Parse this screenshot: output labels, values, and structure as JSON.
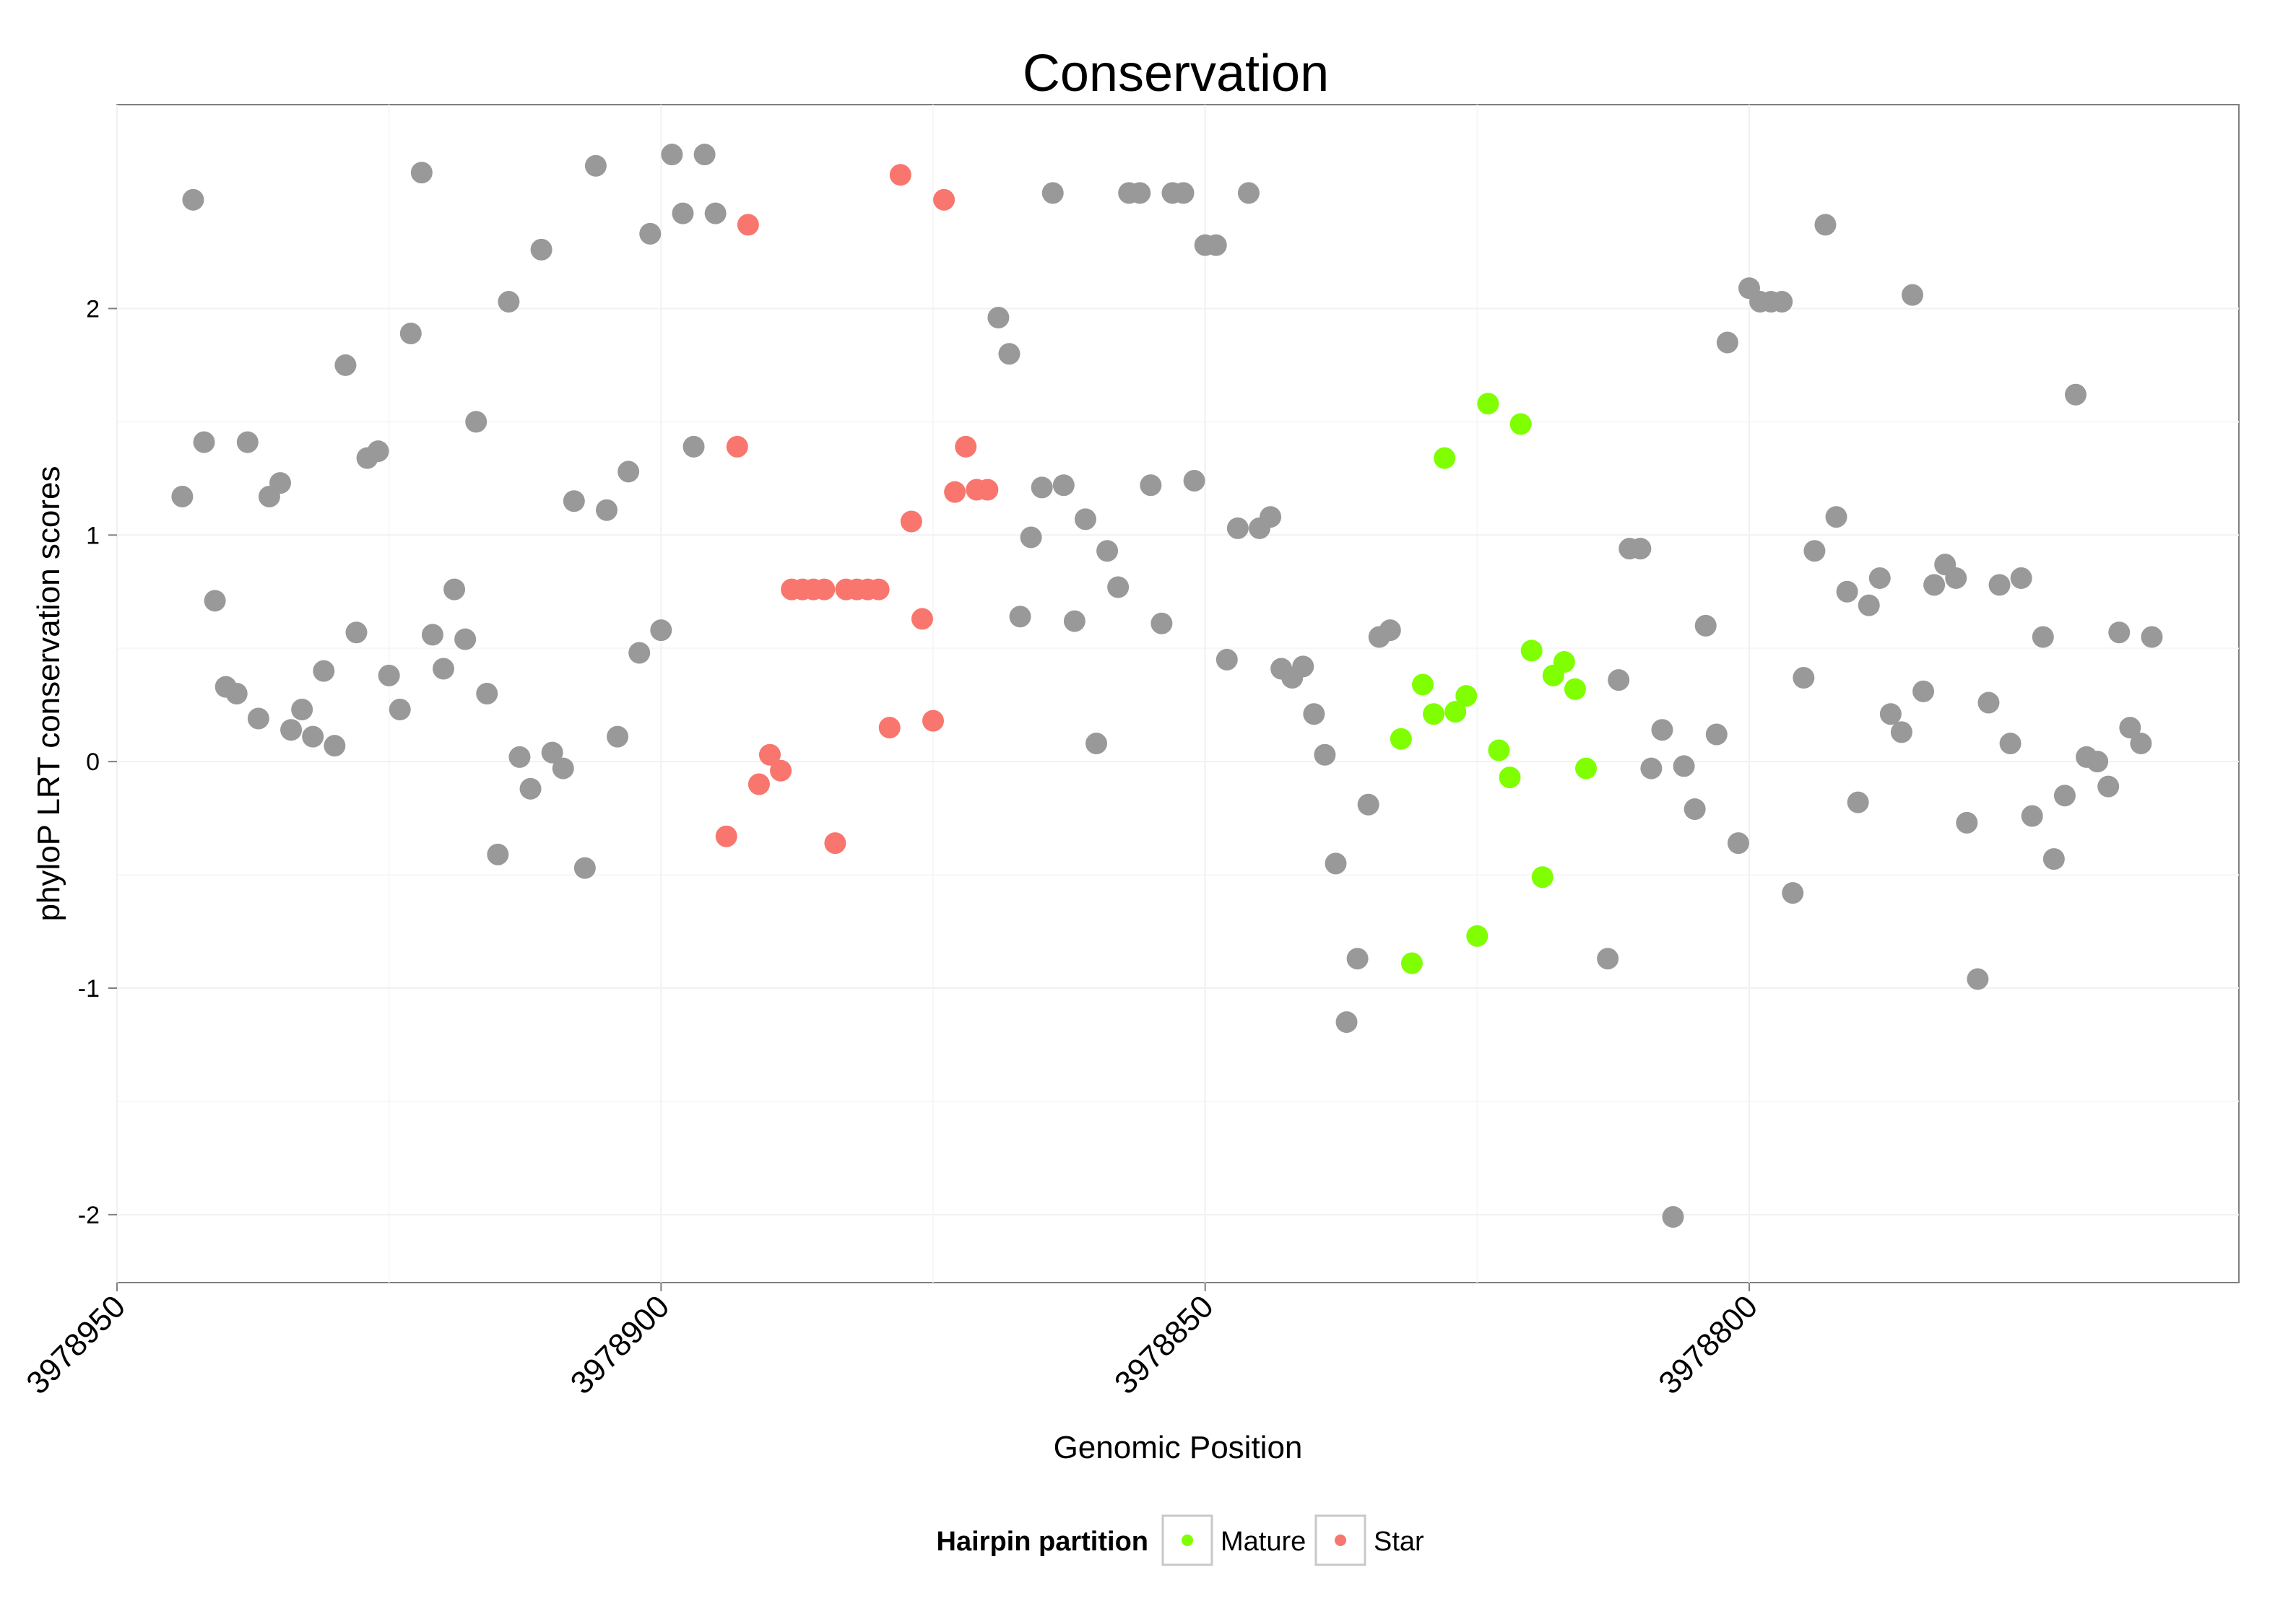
{
  "chart_data": {
    "type": "scatter",
    "title": "Conservation",
    "xlabel": "Genomic Position",
    "ylabel": "phyloP LRT conservation scores",
    "x_reversed": true,
    "xlim": [
      3978950,
      3978755
    ],
    "ylim": [
      -2.3,
      2.9
    ],
    "x_ticks": [
      3978950,
      3978900,
      3978850,
      3978800
    ],
    "x_tick_labels": [
      "3978950",
      "3978900",
      "3978850",
      "3978800"
    ],
    "y_ticks": [
      -2,
      -1,
      0,
      1,
      2
    ],
    "y_tick_labels": [
      "-2",
      "-1",
      "0",
      "1",
      "2"
    ],
    "grid": true,
    "legend": {
      "title": "Hairpin partition",
      "position": "bottom",
      "entries": [
        {
          "label": "Mature",
          "color": "#7FFF00"
        },
        {
          "label": "Star",
          "color": "#F8766D"
        }
      ]
    },
    "series": [
      {
        "name": "Other",
        "color": "#999999",
        "in_legend": false,
        "points": [
          [
            3978944,
            1.17
          ],
          [
            3978943,
            2.48
          ],
          [
            3978942,
            1.41
          ],
          [
            3978941,
            0.71
          ],
          [
            3978940,
            0.33
          ],
          [
            3978939,
            0.3
          ],
          [
            3978938,
            1.41
          ],
          [
            3978937,
            0.19
          ],
          [
            3978936,
            1.17
          ],
          [
            3978935,
            1.23
          ],
          [
            3978934,
            0.14
          ],
          [
            3978933,
            0.23
          ],
          [
            3978932,
            0.11
          ],
          [
            3978931,
            0.4
          ],
          [
            3978930,
            0.07
          ],
          [
            3978929,
            1.75
          ],
          [
            3978928,
            0.57
          ],
          [
            3978927,
            1.34
          ],
          [
            3978926,
            1.37
          ],
          [
            3978925,
            0.38
          ],
          [
            3978924,
            0.23
          ],
          [
            3978923,
            1.89
          ],
          [
            3978922,
            2.6
          ],
          [
            3978921,
            0.56
          ],
          [
            3978920,
            0.41
          ],
          [
            3978919,
            0.76
          ],
          [
            3978918,
            0.54
          ],
          [
            3978917,
            1.5
          ],
          [
            3978916,
            0.3
          ],
          [
            3978915,
            -0.41
          ],
          [
            3978914,
            2.03
          ],
          [
            3978913,
            0.02
          ],
          [
            3978912,
            -0.12
          ],
          [
            3978911,
            2.26
          ],
          [
            3978910,
            0.04
          ],
          [
            3978909,
            -0.03
          ],
          [
            3978908,
            1.15
          ],
          [
            3978907,
            -0.47
          ],
          [
            3978906,
            2.63
          ],
          [
            3978905,
            1.11
          ],
          [
            3978904,
            0.11
          ],
          [
            3978903,
            1.28
          ],
          [
            3978902,
            0.48
          ],
          [
            3978901,
            2.33
          ],
          [
            3978900,
            0.58
          ],
          [
            3978899,
            2.68
          ],
          [
            3978898,
            2.42
          ],
          [
            3978897,
            1.39
          ],
          [
            3978896,
            2.68
          ],
          [
            3978895,
            2.42
          ],
          [
            3978869,
            1.96
          ],
          [
            3978868,
            1.8
          ],
          [
            3978867,
            0.64
          ],
          [
            3978866,
            0.99
          ],
          [
            3978865,
            1.21
          ],
          [
            3978864,
            2.51
          ],
          [
            3978863,
            1.22
          ],
          [
            3978862,
            0.62
          ],
          [
            3978861,
            1.07
          ],
          [
            3978860,
            0.08
          ],
          [
            3978859,
            0.93
          ],
          [
            3978858,
            0.77
          ],
          [
            3978857,
            2.51
          ],
          [
            3978856,
            2.51
          ],
          [
            3978855,
            1.22
          ],
          [
            3978854,
            0.61
          ],
          [
            3978853,
            2.51
          ],
          [
            3978852,
            2.51
          ],
          [
            3978851,
            1.24
          ],
          [
            3978850,
            2.28
          ],
          [
            3978849,
            2.28
          ],
          [
            3978848,
            0.45
          ],
          [
            3978847,
            1.03
          ],
          [
            3978846,
            2.51
          ],
          [
            3978845,
            1.03
          ],
          [
            3978844,
            1.08
          ],
          [
            3978843,
            0.41
          ],
          [
            3978842,
            0.37
          ],
          [
            3978841,
            0.42
          ],
          [
            3978840,
            0.21
          ],
          [
            3978839,
            0.03
          ],
          [
            3978838,
            -0.45
          ],
          [
            3978837,
            -1.15
          ],
          [
            3978836,
            -0.87
          ],
          [
            3978835,
            -0.19
          ],
          [
            3978834,
            0.55
          ],
          [
            3978833,
            0.58
          ],
          [
            3978813,
            -0.87
          ],
          [
            3978812,
            0.36
          ],
          [
            3978811,
            0.94
          ],
          [
            3978810,
            0.94
          ],
          [
            3978809,
            -0.03
          ],
          [
            3978808,
            0.14
          ],
          [
            3978807,
            -2.01
          ],
          [
            3978806,
            -0.02
          ],
          [
            3978805,
            -0.21
          ],
          [
            3978804,
            0.6
          ],
          [
            3978803,
            0.12
          ],
          [
            3978802,
            1.85
          ],
          [
            3978801,
            -0.36
          ],
          [
            3978800,
            2.09
          ],
          [
            3978799,
            2.03
          ],
          [
            3978798,
            2.03
          ],
          [
            3978797,
            2.03
          ],
          [
            3978796,
            -0.58
          ],
          [
            3978795,
            0.37
          ],
          [
            3978794,
            0.93
          ],
          [
            3978793,
            2.37
          ],
          [
            3978792,
            1.08
          ],
          [
            3978791,
            0.75
          ],
          [
            3978790,
            -0.18
          ],
          [
            3978789,
            0.69
          ],
          [
            3978788,
            0.81
          ],
          [
            3978787,
            0.21
          ],
          [
            3978786,
            0.13
          ],
          [
            3978785,
            2.06
          ],
          [
            3978784,
            0.31
          ],
          [
            3978783,
            0.78
          ],
          [
            3978782,
            0.87
          ],
          [
            3978781,
            0.81
          ],
          [
            3978780,
            -0.27
          ],
          [
            3978779,
            -0.96
          ],
          [
            3978778,
            0.26
          ],
          [
            3978777,
            0.78
          ],
          [
            3978776,
            0.08
          ],
          [
            3978775,
            0.81
          ],
          [
            3978774,
            -0.24
          ],
          [
            3978773,
            0.55
          ],
          [
            3978772,
            -0.43
          ],
          [
            3978771,
            -0.15
          ],
          [
            3978770,
            1.62
          ],
          [
            3978769,
            0.02
          ],
          [
            3978768,
            0.0
          ],
          [
            3978767,
            -0.11
          ],
          [
            3978766,
            0.57
          ],
          [
            3978765,
            0.15
          ],
          [
            3978764,
            0.08
          ],
          [
            3978763,
            0.55
          ]
        ]
      },
      {
        "name": "Star",
        "color": "#F8766D",
        "in_legend": true,
        "points": [
          [
            3978894,
            -0.33
          ],
          [
            3978893,
            1.39
          ],
          [
            3978892,
            2.37
          ],
          [
            3978891,
            -0.1
          ],
          [
            3978890,
            0.03
          ],
          [
            3978889,
            -0.04
          ],
          [
            3978888,
            0.76
          ],
          [
            3978887,
            0.76
          ],
          [
            3978886,
            0.76
          ],
          [
            3978885,
            0.76
          ],
          [
            3978884,
            -0.36
          ],
          [
            3978883,
            0.76
          ],
          [
            3978882,
            0.76
          ],
          [
            3978881,
            0.76
          ],
          [
            3978880,
            0.76
          ],
          [
            3978879,
            0.15
          ],
          [
            3978878,
            2.59
          ],
          [
            3978877,
            1.06
          ],
          [
            3978876,
            0.63
          ],
          [
            3978875,
            0.18
          ],
          [
            3978874,
            2.48
          ],
          [
            3978873,
            1.19
          ],
          [
            3978872,
            1.39
          ],
          [
            3978871,
            1.2
          ],
          [
            3978870,
            1.2
          ]
        ]
      },
      {
        "name": "Mature",
        "color": "#7FFF00",
        "in_legend": true,
        "points": [
          [
            3978832,
            0.1
          ],
          [
            3978831,
            -0.89
          ],
          [
            3978830,
            0.34
          ],
          [
            3978829,
            0.21
          ],
          [
            3978828,
            1.34
          ],
          [
            3978827,
            0.22
          ],
          [
            3978826,
            0.29
          ],
          [
            3978825,
            -0.77
          ],
          [
            3978824,
            1.58
          ],
          [
            3978823,
            0.05
          ],
          [
            3978822,
            -0.07
          ],
          [
            3978821,
            1.49
          ],
          [
            3978820,
            0.49
          ],
          [
            3978819,
            -0.51
          ],
          [
            3978818,
            0.38
          ],
          [
            3978817,
            0.44
          ],
          [
            3978816,
            0.32
          ],
          [
            3978815,
            -0.03
          ]
        ]
      }
    ]
  }
}
